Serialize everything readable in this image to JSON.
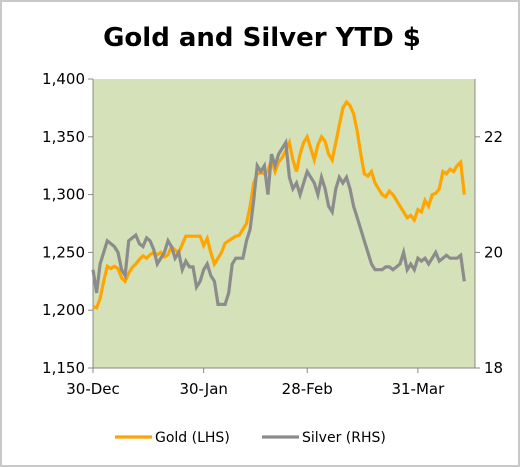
{
  "chart_data": {
    "type": "line",
    "title": "Gold and Silver YTD $",
    "plot_background": "#d4e1b9",
    "x_tick_labels": [
      "30-Dec",
      "30-Jan",
      "28-Feb",
      "31-Mar"
    ],
    "x_tick_positions": [
      0,
      31,
      60,
      91
    ],
    "x_range": [
      0,
      107
    ],
    "left_axis": {
      "ylim": [
        1150,
        1400
      ],
      "ticks": [
        1150,
        1200,
        1250,
        1300,
        1350,
        1400
      ],
      "tick_labels": [
        "1,150",
        "1,200",
        "1,250",
        "1,300",
        "1,350",
        "1,400"
      ]
    },
    "right_axis": {
      "ylim": [
        18,
        23
      ],
      "ticks": [
        18,
        20,
        22
      ],
      "tick_labels": [
        "18",
        "20",
        "22"
      ]
    },
    "series": [
      {
        "name": "Gold (LHS)",
        "axis": "left",
        "color": "#ffa500",
        "x": [
          0,
          1,
          2,
          3,
          4,
          5,
          6,
          7,
          8,
          9,
          10,
          11,
          12,
          13,
          14,
          15,
          16,
          17,
          18,
          19,
          20,
          21,
          22,
          23,
          24,
          25,
          26,
          27,
          28,
          29,
          30,
          31,
          32,
          33,
          34,
          35,
          36,
          37,
          38,
          39,
          40,
          41,
          42,
          43,
          44,
          45,
          46,
          47,
          48,
          49,
          50,
          51,
          52,
          53,
          54,
          55,
          56,
          57,
          58,
          59,
          60,
          61,
          62,
          63,
          64,
          65,
          66,
          67,
          68,
          69,
          70,
          71,
          72,
          73,
          74,
          75,
          76,
          77,
          78,
          79,
          80,
          81,
          82,
          83,
          84,
          85,
          86,
          87,
          88,
          89,
          90,
          91,
          92,
          93,
          94,
          95,
          96,
          97,
          98,
          99,
          100,
          101,
          102,
          103,
          104
        ],
        "values": [
          1203,
          1202,
          1210,
          1225,
          1238,
          1236,
          1238,
          1236,
          1228,
          1225,
          1232,
          1237,
          1240,
          1244,
          1247,
          1245,
          1248,
          1250,
          1248,
          1250,
          1246,
          1248,
          1255,
          1252,
          1250,
          1257,
          1264,
          1264,
          1264,
          1264,
          1264,
          1256,
          1262,
          1250,
          1240,
          1245,
          1250,
          1258,
          1260,
          1262,
          1264,
          1265,
          1270,
          1275,
          1290,
          1310,
          1318,
          1319,
          1318,
          1320,
          1330,
          1320,
          1328,
          1332,
          1338,
          1345,
          1330,
          1320,
          1335,
          1345,
          1350,
          1340,
          1330,
          1343,
          1350,
          1346,
          1335,
          1330,
          1345,
          1360,
          1375,
          1380,
          1377,
          1370,
          1355,
          1335,
          1318,
          1316,
          1320,
          1310,
          1305,
          1300,
          1298,
          1303,
          1300,
          1295,
          1290,
          1285,
          1280,
          1282,
          1278,
          1287,
          1285,
          1295,
          1290,
          1300,
          1301,
          1305,
          1320,
          1318,
          1322,
          1320,
          1325,
          1328,
          1300
        ]
      },
      {
        "name": "Silver (RHS)",
        "axis": "right",
        "color": "#8c8c8c",
        "x": [
          0,
          1,
          2,
          3,
          4,
          5,
          6,
          7,
          8,
          9,
          10,
          11,
          12,
          13,
          14,
          15,
          16,
          17,
          18,
          19,
          20,
          21,
          22,
          23,
          24,
          25,
          26,
          27,
          28,
          29,
          30,
          31,
          32,
          33,
          34,
          35,
          36,
          37,
          38,
          39,
          40,
          41,
          42,
          43,
          44,
          45,
          46,
          47,
          48,
          49,
          50,
          51,
          52,
          53,
          54,
          55,
          56,
          57,
          58,
          59,
          60,
          61,
          62,
          63,
          64,
          65,
          66,
          67,
          68,
          69,
          70,
          71,
          72,
          73,
          74,
          75,
          76,
          77,
          78,
          79,
          80,
          81,
          82,
          83,
          84,
          85,
          86,
          87,
          88,
          89,
          90,
          91,
          92,
          93,
          94,
          95,
          96,
          97,
          98,
          99,
          100,
          101,
          102,
          103,
          104
        ],
        "values": [
          19.7,
          19.3,
          19.8,
          20.0,
          20.2,
          20.15,
          20.1,
          20.0,
          19.7,
          19.6,
          20.2,
          20.25,
          20.3,
          20.15,
          20.1,
          20.25,
          20.2,
          20.05,
          19.8,
          19.9,
          20.0,
          20.2,
          20.1,
          19.9,
          20.0,
          19.7,
          19.85,
          19.75,
          19.75,
          19.4,
          19.5,
          19.7,
          19.8,
          19.6,
          19.5,
          19.1,
          19.1,
          19.1,
          19.3,
          19.8,
          19.9,
          19.9,
          19.9,
          20.2,
          20.4,
          20.9,
          21.5,
          21.4,
          21.5,
          21.0,
          21.7,
          21.5,
          21.7,
          21.8,
          21.9,
          21.3,
          21.1,
          21.2,
          21.0,
          21.2,
          21.4,
          21.3,
          21.2,
          21.0,
          21.3,
          21.1,
          20.8,
          20.7,
          21.1,
          21.3,
          21.2,
          21.3,
          21.1,
          20.8,
          20.6,
          20.4,
          20.2,
          20.0,
          19.8,
          19.7,
          19.7,
          19.7,
          19.75,
          19.75,
          19.7,
          19.75,
          19.8,
          20.0,
          19.7,
          19.8,
          19.7,
          19.9,
          19.85,
          19.9,
          19.8,
          19.9,
          20.0,
          19.85,
          19.9,
          19.95,
          19.9,
          19.9,
          19.9,
          19.95,
          19.5
        ]
      }
    ],
    "legend": {
      "placement": "bottom"
    },
    "grid": false
  }
}
